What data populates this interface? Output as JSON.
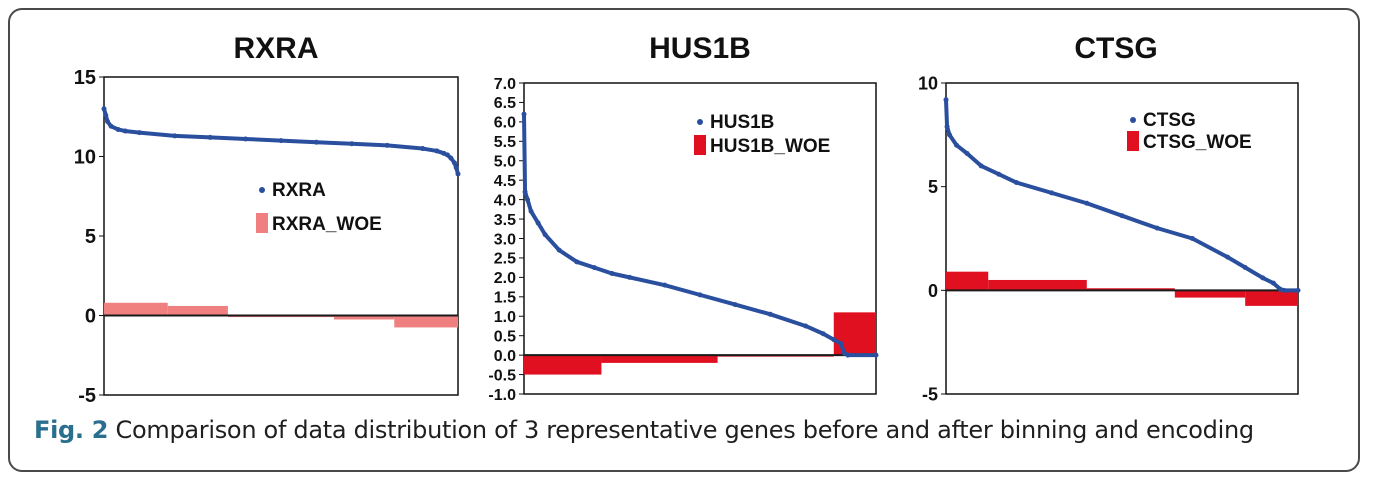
{
  "figure": {
    "caption_label": "Fig. 2",
    "caption_text": "Comparison of data distribution of 3 representative genes before and after binning and encoding",
    "colors": {
      "series": "#2a4f9e",
      "woe_solid": "#e01020",
      "woe_light": "#f08080",
      "frame": "#4a4a4a",
      "caption_label": "#2b6f8f"
    }
  },
  "chart_data": [
    {
      "type": "line",
      "title": "RXRA",
      "ylim": [
        -5,
        15
      ],
      "yticks": [
        "15",
        "10",
        "5",
        "0",
        "-5"
      ],
      "ytick_values": [
        15,
        10,
        5,
        0,
        -5
      ],
      "x": [
        0,
        0.5,
        1,
        2,
        4,
        6,
        10,
        20,
        30,
        40,
        50,
        60,
        70,
        80,
        90,
        94,
        96,
        97,
        98,
        99,
        99.5,
        100
      ],
      "series": [
        {
          "name": "RXRA",
          "marker": "scatter",
          "values": [
            13.0,
            12.6,
            12.2,
            11.9,
            11.7,
            11.6,
            11.5,
            11.3,
            11.2,
            11.1,
            11.0,
            10.9,
            10.8,
            10.7,
            10.5,
            10.35,
            10.2,
            10.1,
            9.9,
            9.6,
            9.3,
            8.9
          ]
        },
        {
          "name": "RXRA_WOE",
          "marker": "bar",
          "style": "light",
          "bins": [
            {
              "x0": 0,
              "x1": 18,
              "value": 0.8
            },
            {
              "x0": 18,
              "x1": 35,
              "value": 0.6
            },
            {
              "x0": 35,
              "x1": 65,
              "value": -0.1
            },
            {
              "x0": 65,
              "x1": 82,
              "value": -0.25
            },
            {
              "x0": 82,
              "x1": 100,
              "value": -0.75
            }
          ]
        }
      ],
      "legend": "center-right"
    },
    {
      "type": "line",
      "title": "HUS1B",
      "ylim": [
        -1.0,
        7.0
      ],
      "yticks": [
        "7.0",
        "6.5",
        "6.0",
        "5.5",
        "5.0",
        "4.5",
        "4.0",
        "3.5",
        "3.0",
        "2.5",
        "2.0",
        "1.5",
        "1.0",
        "0.5",
        "0.0",
        "-0.5",
        "-1.0"
      ],
      "ytick_values": [
        7.0,
        6.5,
        6.0,
        5.5,
        5.0,
        4.5,
        4.0,
        3.5,
        3.0,
        2.5,
        2.0,
        1.5,
        1.0,
        0.5,
        0.0,
        -0.5,
        -1.0
      ],
      "x": [
        0,
        0.3,
        1,
        2,
        4,
        6,
        10,
        15,
        20,
        25,
        30,
        40,
        50,
        60,
        70,
        80,
        85,
        88,
        90,
        91,
        92,
        100
      ],
      "series": [
        {
          "name": "HUS1B",
          "marker": "scatter",
          "values": [
            6.2,
            4.2,
            4.0,
            3.7,
            3.4,
            3.1,
            2.7,
            2.4,
            2.25,
            2.1,
            2.0,
            1.8,
            1.55,
            1.3,
            1.05,
            0.75,
            0.55,
            0.4,
            0.3,
            0.05,
            0.0,
            0.0
          ]
        },
        {
          "name": "HUS1B_WOE",
          "marker": "bar",
          "style": "solid",
          "bins": [
            {
              "x0": 0,
              "x1": 22,
              "value": -0.5
            },
            {
              "x0": 22,
              "x1": 55,
              "value": -0.2
            },
            {
              "x0": 55,
              "x1": 88,
              "value": 0.0
            },
            {
              "x0": 88,
              "x1": 100,
              "value": 1.1
            }
          ]
        }
      ],
      "legend": "top-right"
    },
    {
      "type": "line",
      "title": "CTSG",
      "ylim": [
        -5,
        10
      ],
      "yticks": [
        "10",
        "5",
        "0",
        "-5"
      ],
      "ytick_values": [
        10,
        5,
        0,
        -5
      ],
      "x": [
        0,
        0.3,
        1,
        3,
        6,
        10,
        15,
        20,
        30,
        40,
        50,
        60,
        70,
        80,
        85,
        90,
        93,
        95,
        96,
        100
      ],
      "series": [
        {
          "name": "CTSG",
          "marker": "scatter",
          "values": [
            9.2,
            7.9,
            7.5,
            7.0,
            6.6,
            6.0,
            5.6,
            5.2,
            4.7,
            4.2,
            3.6,
            3.0,
            2.5,
            1.6,
            1.1,
            0.6,
            0.35,
            0.05,
            0.0,
            0.0
          ]
        },
        {
          "name": "CTSG_WOE",
          "marker": "bar",
          "style": "solid",
          "bins": [
            {
              "x0": 0,
              "x1": 12,
              "value": 0.9
            },
            {
              "x0": 12,
              "x1": 40,
              "value": 0.5
            },
            {
              "x0": 40,
              "x1": 65,
              "value": 0.1
            },
            {
              "x0": 65,
              "x1": 85,
              "value": -0.35
            },
            {
              "x0": 85,
              "x1": 100,
              "value": -0.75
            }
          ]
        }
      ],
      "legend": "top-right"
    }
  ]
}
